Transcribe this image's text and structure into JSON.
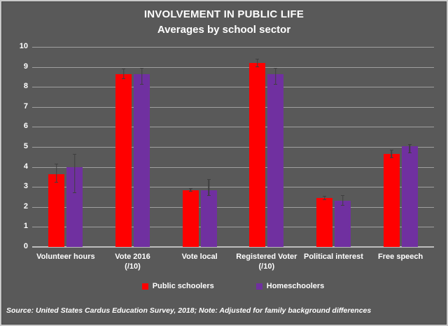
{
  "title": "INVOLVEMENT IN PUBLIC LIFE",
  "subtitle": "Averages by school sector",
  "footer_note": "Source: United States Cardus Education Survey, 2018; Note: Adjusted for family background differences",
  "colors": {
    "background": "#595959",
    "public_schoolers": "#FF0000",
    "homeschoolers": "#7030A0",
    "gridline": "#a0a0a0",
    "axis_line": "#bdbdbd",
    "error_bar": "#3f3f3f",
    "text": "#ffffff"
  },
  "chart_data": {
    "type": "bar",
    "title": "INVOLVEMENT IN PUBLIC LIFE",
    "subtitle": "Averages by school sector",
    "categories": [
      "Volunteer hours",
      "Vote 2016\n(/10)",
      "Vote local",
      "Registered Voter\n(/10)",
      "Political interest",
      "Free speech"
    ],
    "series": [
      {
        "name": "Public schoolers",
        "color": "#FF0000",
        "values": [
          3.65,
          8.65,
          2.85,
          9.2,
          2.45,
          4.65
        ],
        "error_low": [
          3.2,
          8.4,
          2.75,
          9.0,
          2.35,
          4.45
        ],
        "error_high": [
          4.15,
          8.9,
          2.95,
          9.4,
          2.55,
          4.85
        ]
      },
      {
        "name": "Homeschoolers",
        "color": "#7030A0",
        "values": [
          4.0,
          8.65,
          2.85,
          8.65,
          2.3,
          5.05
        ],
        "error_low": [
          2.7,
          8.1,
          2.55,
          8.1,
          2.05,
          4.7
        ],
        "error_high": [
          4.65,
          8.95,
          3.4,
          8.95,
          2.6,
          5.15
        ]
      }
    ],
    "xlabel": "",
    "ylabel": "",
    "ylim": [
      0,
      10
    ],
    "ytick_step": 1,
    "grid": true,
    "legend_position": "bottom",
    "error_bars": true
  }
}
